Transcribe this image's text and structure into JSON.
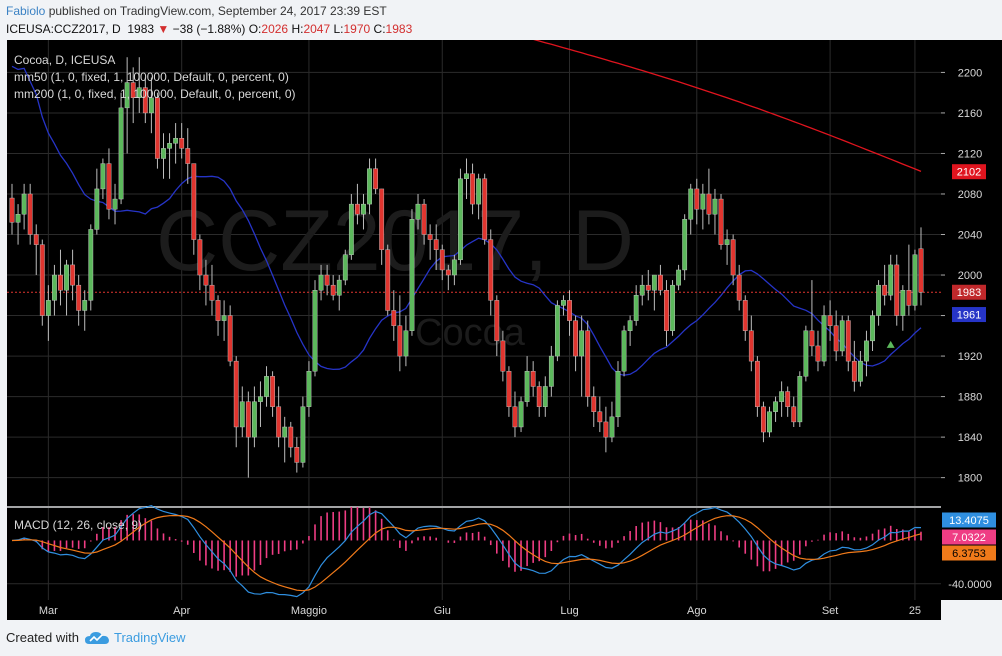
{
  "header": {
    "author": "Fabiolo",
    "published_text": " published on TradingView.com, September 24, 2017 23:39 EST",
    "symbol": "ICEUSA:CCZ2017, D",
    "last": "1983",
    "change_text": "−38 (−1.88%)",
    "o_label": "O:",
    "o_value": "2026",
    "h_label": "H:",
    "h_value": "2047",
    "l_label": "L:",
    "l_value": "1970",
    "c_label": "C:",
    "c_value": "1983"
  },
  "legend": {
    "line1": "Cocoa, D, ICEUSA",
    "line2": "mm50 (1, 0, fixed, 1, 100000, Default, 0, percent, 0)",
    "line3": "mm200 (1, 0, fixed, 1, 100000, Default, 0, percent, 0)"
  },
  "watermark": {
    "symbol": "CCZ2017, D",
    "name": "Cocoa"
  },
  "macd_label": "MACD (12, 26, close, 9)",
  "footer": {
    "created_with": "Created with",
    "brand": "TradingView"
  },
  "colors": {
    "up": "#5cb85c",
    "down": "#e0352f",
    "ma50": "#2634c7",
    "ma200": "#e0141e",
    "macd": "#2f8fe0",
    "signal": "#f07a1a",
    "hist": "#ef3d84"
  },
  "chart_data": [
    {
      "type": "candlestick",
      "title": "Cocoa, D, ICEUSA",
      "y_ticks": [
        1800,
        1840,
        1880,
        1920,
        1960,
        2000,
        2040,
        2080,
        2120,
        2160,
        2200
      ],
      "ylim": [
        1772,
        2232
      ],
      "x_tick_labels": [
        "Mar",
        "Apr",
        "Maggio",
        "Giu",
        "Lug",
        "Ago",
        "Set",
        "25"
      ],
      "x_tick_index": [
        6,
        28,
        49,
        71,
        92,
        113,
        135,
        149
      ],
      "price_labels": {
        "ma200": "2102",
        "close": "1983",
        "ma50": "1961"
      },
      "last_close": 1983,
      "ohlc": [
        [
          2076,
          2090,
          2040,
          2052
        ],
        [
          2052,
          2070,
          2030,
          2060
        ],
        [
          2060,
          2090,
          2045,
          2080
        ],
        [
          2080,
          2090,
          2030,
          2040
        ],
        [
          2040,
          2050,
          2000,
          2030
        ],
        [
          2030,
          2035,
          1950,
          1960
        ],
        [
          1960,
          1990,
          1935,
          1975
        ],
        [
          1975,
          2010,
          1960,
          2000
        ],
        [
          2000,
          2025,
          1970,
          1985
        ],
        [
          1985,
          2015,
          1960,
          2010
        ],
        [
          2010,
          2025,
          1975,
          1990
        ],
        [
          1990,
          2000,
          1950,
          1965
        ],
        [
          1965,
          1985,
          1945,
          1975
        ],
        [
          1975,
          2050,
          1965,
          2045
        ],
        [
          2045,
          2105,
          2040,
          2085
        ],
        [
          2085,
          2115,
          2075,
          2110
        ],
        [
          2110,
          2125,
          2055,
          2065
        ],
        [
          2065,
          2090,
          2050,
          2075
        ],
        [
          2075,
          2180,
          2070,
          2165
        ],
        [
          2165,
          2215,
          2120,
          2190
        ],
        [
          2190,
          2205,
          2150,
          2175
        ],
        [
          2175,
          2215,
          2160,
          2185
        ],
        [
          2185,
          2195,
          2150,
          2160
        ],
        [
          2160,
          2195,
          2140,
          2175
        ],
        [
          2175,
          2180,
          2105,
          2115
        ],
        [
          2115,
          2140,
          2095,
          2125
        ],
        [
          2125,
          2140,
          2095,
          2130
        ],
        [
          2130,
          2150,
          2110,
          2135
        ],
        [
          2135,
          2150,
          2115,
          2125
        ],
        [
          2125,
          2145,
          2090,
          2110
        ],
        [
          2110,
          2110,
          2020,
          2035
        ],
        [
          2035,
          2040,
          1985,
          2000
        ],
        [
          2000,
          2015,
          1970,
          1990
        ],
        [
          1990,
          2010,
          1960,
          1975
        ],
        [
          1975,
          1980,
          1940,
          1955
        ],
        [
          1955,
          1975,
          1935,
          1960
        ],
        [
          1960,
          1970,
          1910,
          1915
        ],
        [
          1915,
          1920,
          1830,
          1850
        ],
        [
          1850,
          1890,
          1840,
          1875
        ],
        [
          1875,
          1885,
          1800,
          1840
        ],
        [
          1840,
          1890,
          1830,
          1875
        ],
        [
          1875,
          1895,
          1850,
          1880
        ],
        [
          1880,
          1910,
          1870,
          1900
        ],
        [
          1900,
          1905,
          1860,
          1870
        ],
        [
          1870,
          1890,
          1830,
          1840
        ],
        [
          1840,
          1860,
          1815,
          1850
        ],
        [
          1850,
          1855,
          1820,
          1830
        ],
        [
          1830,
          1840,
          1805,
          1815
        ],
        [
          1815,
          1880,
          1810,
          1870
        ],
        [
          1870,
          1915,
          1860,
          1905
        ],
        [
          1905,
          1995,
          1900,
          1985
        ],
        [
          1985,
          2010,
          1975,
          2000
        ],
        [
          2000,
          2010,
          1980,
          1990
        ],
        [
          1990,
          2000,
          1975,
          1980
        ],
        [
          1980,
          2000,
          1965,
          1995
        ],
        [
          1995,
          2025,
          1990,
          2020
        ],
        [
          2020,
          2080,
          2015,
          2070
        ],
        [
          2070,
          2090,
          2050,
          2060
        ],
        [
          2060,
          2080,
          2045,
          2070
        ],
        [
          2070,
          2115,
          2060,
          2105
        ],
        [
          2105,
          2115,
          2080,
          2085
        ],
        [
          2085,
          2085,
          2010,
          2025
        ],
        [
          2025,
          2030,
          1960,
          1965
        ],
        [
          1965,
          1985,
          1935,
          1950
        ],
        [
          1950,
          1980,
          1905,
          1920
        ],
        [
          1920,
          1960,
          1910,
          1945
        ],
        [
          1945,
          2065,
          1940,
          2055
        ],
        [
          2055,
          2080,
          2045,
          2070
        ],
        [
          2070,
          2075,
          2030,
          2040
        ],
        [
          2040,
          2050,
          2015,
          2035
        ],
        [
          2035,
          2050,
          2005,
          2025
        ],
        [
          2025,
          2030,
          1995,
          2005
        ],
        [
          2005,
          2010,
          1985,
          2000
        ],
        [
          2000,
          2020,
          1990,
          2015
        ],
        [
          2015,
          2105,
          2010,
          2095
        ],
        [
          2095,
          2115,
          2075,
          2100
        ],
        [
          2100,
          2110,
          2060,
          2070
        ],
        [
          2070,
          2100,
          2055,
          2095
        ],
        [
          2095,
          2100,
          2030,
          2035
        ],
        [
          2035,
          2045,
          1960,
          1975
        ],
        [
          1975,
          1980,
          1920,
          1935
        ],
        [
          1935,
          1945,
          1895,
          1905
        ],
        [
          1905,
          1910,
          1860,
          1870
        ],
        [
          1870,
          1885,
          1840,
          1850
        ],
        [
          1850,
          1880,
          1845,
          1875
        ],
        [
          1875,
          1920,
          1870,
          1905
        ],
        [
          1905,
          1915,
          1880,
          1890
        ],
        [
          1890,
          1895,
          1860,
          1870
        ],
        [
          1870,
          1900,
          1860,
          1890
        ],
        [
          1890,
          1930,
          1880,
          1920
        ],
        [
          1920,
          1975,
          1915,
          1970
        ],
        [
          1970,
          1980,
          1960,
          1975
        ],
        [
          1975,
          1985,
          1940,
          1955
        ],
        [
          1955,
          1960,
          1905,
          1920
        ],
        [
          1920,
          1960,
          1880,
          1945
        ],
        [
          1945,
          1955,
          1870,
          1880
        ],
        [
          1880,
          1890,
          1850,
          1865
        ],
        [
          1865,
          1880,
          1845,
          1855
        ],
        [
          1855,
          1870,
          1825,
          1840
        ],
        [
          1840,
          1875,
          1835,
          1860
        ],
        [
          1860,
          1915,
          1850,
          1905
        ],
        [
          1905,
          1950,
          1900,
          1945
        ],
        [
          1945,
          1960,
          1930,
          1955
        ],
        [
          1955,
          1990,
          1950,
          1980
        ],
        [
          1980,
          2000,
          1970,
          1990
        ],
        [
          1990,
          2005,
          1975,
          1985
        ],
        [
          1985,
          2000,
          1965,
          2000
        ],
        [
          2000,
          2010,
          1980,
          1985
        ],
        [
          1985,
          1995,
          1930,
          1945
        ],
        [
          1945,
          1995,
          1940,
          1990
        ],
        [
          1990,
          2010,
          1985,
          2005
        ],
        [
          2005,
          2060,
          1995,
          2055
        ],
        [
          2055,
          2090,
          2040,
          2085
        ],
        [
          2085,
          2095,
          2050,
          2065
        ],
        [
          2065,
          2090,
          2045,
          2080
        ],
        [
          2080,
          2105,
          2050,
          2060
        ],
        [
          2060,
          2085,
          2040,
          2075
        ],
        [
          2075,
          2080,
          2025,
          2030
        ],
        [
          2030,
          2045,
          2010,
          2035
        ],
        [
          2035,
          2040,
          1990,
          2000
        ],
        [
          2000,
          2010,
          1965,
          1975
        ],
        [
          1975,
          1980,
          1935,
          1945
        ],
        [
          1945,
          1960,
          1905,
          1915
        ],
        [
          1915,
          1920,
          1860,
          1870
        ],
        [
          1870,
          1875,
          1835,
          1845
        ],
        [
          1845,
          1870,
          1840,
          1865
        ],
        [
          1865,
          1880,
          1855,
          1875
        ],
        [
          1875,
          1895,
          1860,
          1885
        ],
        [
          1885,
          1890,
          1860,
          1870
        ],
        [
          1870,
          1880,
          1850,
          1855
        ],
        [
          1855,
          1905,
          1850,
          1900
        ],
        [
          1900,
          1950,
          1895,
          1945
        ],
        [
          1945,
          1995,
          1920,
          1930
        ],
        [
          1930,
          1945,
          1905,
          1915
        ],
        [
          1915,
          1970,
          1910,
          1960
        ],
        [
          1960,
          1975,
          1935,
          1950
        ],
        [
          1950,
          1965,
          1915,
          1925
        ],
        [
          1925,
          1960,
          1920,
          1955
        ],
        [
          1955,
          1960,
          1905,
          1915
        ],
        [
          1915,
          1935,
          1885,
          1895
        ],
        [
          1895,
          1925,
          1890,
          1915
        ],
        [
          1915,
          1945,
          1900,
          1935
        ],
        [
          1935,
          1965,
          1925,
          1960
        ],
        [
          1960,
          1995,
          1950,
          1990
        ],
        [
          1990,
          2010,
          1970,
          1980
        ],
        [
          1980,
          2020,
          1975,
          2010
        ],
        [
          2010,
          2020,
          1950,
          1960
        ],
        [
          1960,
          1990,
          1945,
          1985
        ],
        [
          1985,
          2030,
          1960,
          1970
        ],
        [
          1970,
          2025,
          1965,
          2020
        ],
        [
          2026,
          2047,
          1970,
          1983
        ]
      ]
    },
    {
      "type": "line",
      "title": "MACD (12, 26, close, 9)",
      "y_ticks": [
        -40
      ],
      "ylim": [
        -55,
        30
      ],
      "value_labels": {
        "macd": "13.4075",
        "histogram": "7.0322",
        "signal": "6.3753"
      },
      "series": [
        {
          "name": ""
        },
        {
          "name": ""
        },
        {
          "name": ""
        }
      ]
    }
  ]
}
